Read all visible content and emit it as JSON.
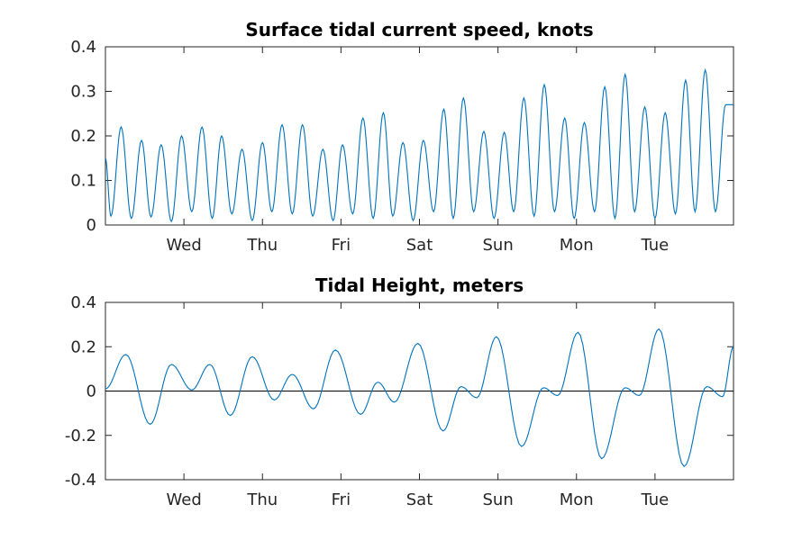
{
  "chart_data": [
    {
      "type": "line",
      "title": "Surface tidal current speed, knots",
      "xlabel": "",
      "ylabel": "",
      "x_unit": "days",
      "xlim": [
        0,
        8
      ],
      "ylim": [
        0,
        0.4
      ],
      "yticks": [
        0,
        0.1,
        0.2,
        0.3,
        0.4
      ],
      "ytick_labels": [
        "0",
        "0.1",
        "0.2",
        "0.3",
        "0.4"
      ],
      "xticks": [
        1,
        2,
        3,
        4,
        5,
        6,
        7
      ],
      "xtick_labels": [
        "Wed",
        "Thu",
        "Fri",
        "Sat",
        "Sun",
        "Mon",
        "Tue"
      ],
      "grid": false,
      "legend": "none",
      "series_color": "#0072bd",
      "peaks": [
        [
          0.2,
          0.22
        ],
        [
          0.46,
          0.19
        ],
        [
          0.71,
          0.18
        ],
        [
          0.97,
          0.2
        ],
        [
          1.23,
          0.22
        ],
        [
          1.48,
          0.2
        ],
        [
          1.74,
          0.17
        ],
        [
          2.0,
          0.185
        ],
        [
          2.25,
          0.225
        ],
        [
          2.51,
          0.225
        ],
        [
          2.77,
          0.17
        ],
        [
          3.02,
          0.18
        ],
        [
          3.28,
          0.24
        ],
        [
          3.54,
          0.252
        ],
        [
          3.79,
          0.185
        ],
        [
          4.05,
          0.19
        ],
        [
          4.31,
          0.26
        ],
        [
          4.56,
          0.285
        ],
        [
          4.82,
          0.21
        ],
        [
          5.08,
          0.208
        ],
        [
          5.33,
          0.285
        ],
        [
          5.59,
          0.315
        ],
        [
          5.85,
          0.24
        ],
        [
          6.1,
          0.23
        ],
        [
          6.36,
          0.31
        ],
        [
          6.62,
          0.338
        ],
        [
          6.87,
          0.265
        ],
        [
          7.13,
          0.252
        ],
        [
          7.39,
          0.325
        ],
        [
          7.64,
          0.348
        ],
        [
          7.9,
          0.27
        ]
      ],
      "troughs": [
        [
          0.07,
          0.02
        ],
        [
          0.33,
          0.015
        ],
        [
          0.58,
          0.018
        ],
        [
          0.84,
          0.008
        ],
        [
          1.1,
          0.03
        ],
        [
          1.36,
          0.015
        ],
        [
          1.61,
          0.025
        ],
        [
          1.87,
          0.01
        ],
        [
          2.12,
          0.03
        ],
        [
          2.38,
          0.025
        ],
        [
          2.64,
          0.02
        ],
        [
          2.9,
          0.01
        ],
        [
          3.15,
          0.025
        ],
        [
          3.41,
          0.015
        ],
        [
          3.66,
          0.02
        ],
        [
          3.92,
          0.01
        ],
        [
          4.18,
          0.03
        ],
        [
          4.43,
          0.015
        ],
        [
          4.69,
          0.03
        ],
        [
          4.95,
          0.015
        ],
        [
          5.2,
          0.03
        ],
        [
          5.46,
          0.02
        ],
        [
          5.72,
          0.03
        ],
        [
          5.97,
          0.015
        ],
        [
          6.23,
          0.03
        ],
        [
          6.49,
          0.015
        ],
        [
          6.74,
          0.03
        ],
        [
          7.0,
          0.015
        ],
        [
          7.26,
          0.025
        ],
        [
          7.51,
          0.03
        ],
        [
          7.77,
          0.03
        ]
      ]
    },
    {
      "type": "line",
      "title": "Tidal Height, meters",
      "xlabel": "",
      "ylabel": "",
      "x_unit": "days",
      "xlim": [
        0,
        8
      ],
      "ylim": [
        -0.4,
        0.4
      ],
      "yticks": [
        -0.4,
        -0.2,
        0,
        0.2,
        0.4
      ],
      "ytick_labels": [
        "-0.4",
        "-0.2",
        "0",
        "0.2",
        "0.4"
      ],
      "xticks": [
        1,
        2,
        3,
        4,
        5,
        6,
        7
      ],
      "xtick_labels": [
        "Wed",
        "Thu",
        "Fri",
        "Sat",
        "Sun",
        "Mon",
        "Tue"
      ],
      "zero_line": true,
      "grid": false,
      "legend": "none",
      "series_color": "#0072bd",
      "extrema": [
        [
          0.0,
          0.01
        ],
        [
          0.26,
          0.165
        ],
        [
          0.57,
          -0.15
        ],
        [
          0.84,
          0.12
        ],
        [
          1.1,
          0.005
        ],
        [
          1.33,
          0.12
        ],
        [
          1.59,
          -0.11
        ],
        [
          1.87,
          0.155
        ],
        [
          2.15,
          -0.04
        ],
        [
          2.38,
          0.075
        ],
        [
          2.65,
          -0.08
        ],
        [
          2.93,
          0.185
        ],
        [
          3.25,
          -0.105
        ],
        [
          3.47,
          0.04
        ],
        [
          3.68,
          -0.05
        ],
        [
          3.98,
          0.215
        ],
        [
          4.3,
          -0.18
        ],
        [
          4.53,
          0.02
        ],
        [
          4.73,
          -0.03
        ],
        [
          4.98,
          0.245
        ],
        [
          5.3,
          -0.25
        ],
        [
          5.58,
          0.015
        ],
        [
          5.76,
          -0.02
        ],
        [
          6.02,
          0.265
        ],
        [
          6.32,
          -0.305
        ],
        [
          6.62,
          0.015
        ],
        [
          6.8,
          -0.02
        ],
        [
          7.05,
          0.28
        ],
        [
          7.37,
          -0.34
        ],
        [
          7.66,
          0.02
        ],
        [
          7.86,
          -0.025
        ],
        [
          8.0,
          0.2
        ]
      ]
    }
  ]
}
